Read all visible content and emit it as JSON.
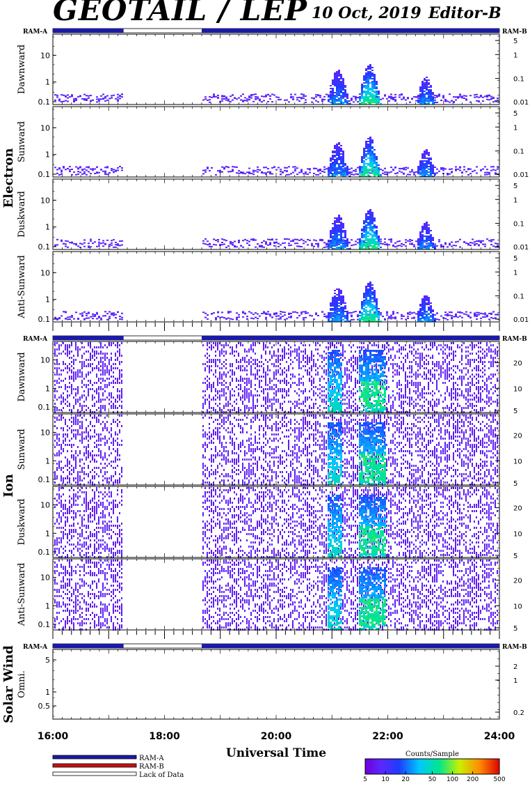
{
  "header": {
    "title": "GEOTAIL / LEP",
    "date": "10 Oct, 2019",
    "editor": "Editor-B"
  },
  "labels": {
    "ram_a": "RAM-A",
    "ram_b": "RAM-B",
    "x_axis_title": "Universal Time"
  },
  "legend": {
    "items": [
      {
        "label": "RAM-A",
        "color": "#1a1aa8"
      },
      {
        "label": "RAM-B",
        "color": "#cc1111"
      },
      {
        "label": "Lack of Data",
        "color": "#ffffff"
      }
    ]
  },
  "colorbar": {
    "title": "Counts/Sample",
    "ticks": [
      "5",
      "10",
      "20",
      "50",
      "100",
      "200",
      "500"
    ],
    "range": [
      5,
      500
    ],
    "scale": "log"
  },
  "chart_data": {
    "type": "heatmap",
    "x_range": [
      "16:00",
      "24:00"
    ],
    "x_ticks": [
      "16:00",
      "18:00",
      "20:00",
      "22:00",
      "24:00"
    ],
    "data_gap": [
      "17:16",
      "18:40"
    ],
    "groups": [
      {
        "name": "Electron",
        "left_ticks": [
          "10",
          "1",
          "0.1"
        ],
        "ram_bar": [
          [
            "16:00",
            "17:16",
            "RAM-A"
          ],
          [
            "18:40",
            "24:00",
            "RAM-A"
          ]
        ],
        "panels": [
          {
            "label": "Dawnward",
            "right_ticks": [
              "5",
              "1",
              "0.1",
              "0.01"
            ]
          },
          {
            "label": "Sunward",
            "right_ticks": [
              "5",
              "1",
              "0.1",
              "0.01"
            ]
          },
          {
            "label": "Duskward",
            "right_ticks": [
              "5",
              "1",
              "0.1",
              "0.01"
            ]
          },
          {
            "label": "Anti-Sunward",
            "right_ticks": [
              "5",
              "1",
              "0.1",
              "0.01"
            ]
          }
        ],
        "enhancement_intervals": [
          [
            "20:54",
            "21:22"
          ],
          [
            "21:28",
            "21:56"
          ],
          [
            "22:30",
            "22:54"
          ]
        ]
      },
      {
        "name": "Ion",
        "left_ticks": [
          "10",
          "1",
          "0.1"
        ],
        "ram_bar": [
          [
            "16:00",
            "17:16",
            "RAM-A"
          ],
          [
            "18:40",
            "24:00",
            "RAM-A"
          ]
        ],
        "panels": [
          {
            "label": "Dawnward",
            "right_ticks": [
              "20",
              "10",
              "5"
            ]
          },
          {
            "label": "Sunward",
            "right_ticks": [
              "20",
              "10",
              "5"
            ]
          },
          {
            "label": "Duskward",
            "right_ticks": [
              "20",
              "10",
              "5"
            ]
          },
          {
            "label": "Anti-Sunward",
            "right_ticks": [
              "20",
              "10",
              "5"
            ]
          }
        ],
        "enhancement_intervals": [
          [
            "20:54",
            "21:10"
          ],
          [
            "21:28",
            "21:56"
          ]
        ]
      },
      {
        "name": "Solar Wind",
        "left_ticks": [
          "5",
          "1",
          "0.5"
        ],
        "ram_bar": [
          [
            "16:00",
            "17:16",
            "RAM-A"
          ],
          [
            "18:40",
            "24:00",
            "RAM-A"
          ]
        ],
        "panels": [
          {
            "label": "Omni.",
            "right_ticks": [
              "2",
              "1",
              "0.2"
            ]
          }
        ],
        "enhancement_intervals": []
      }
    ]
  }
}
